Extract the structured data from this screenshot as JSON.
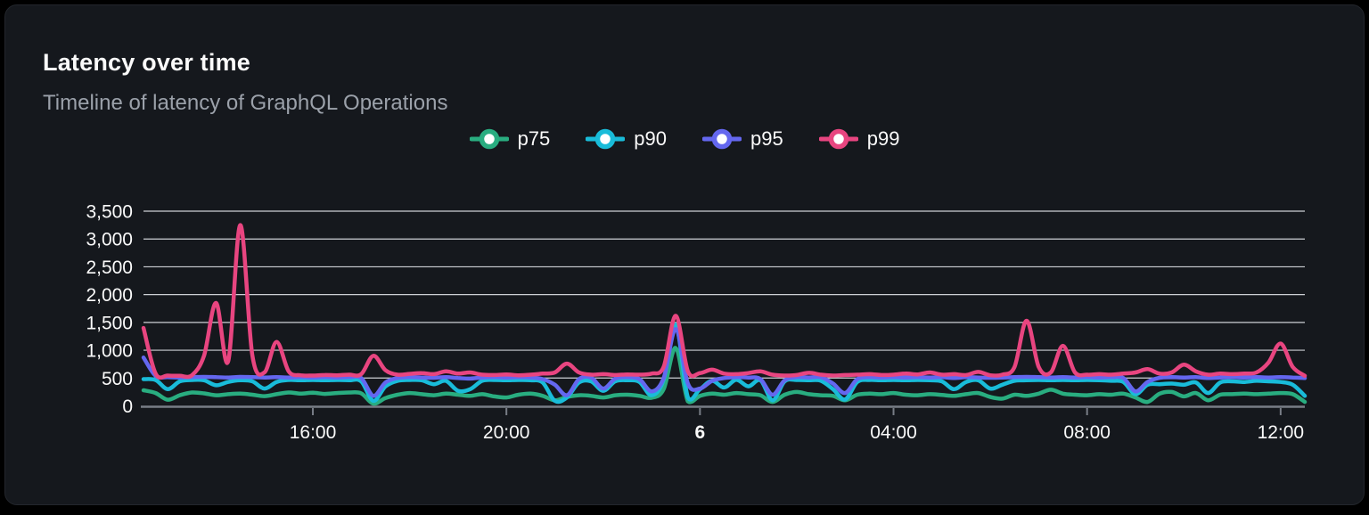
{
  "card": {
    "title": "Latency over time",
    "subtitle": "Timeline of latency of GraphQL Operations"
  },
  "colors": {
    "page_background": "#000000",
    "card_background": "#15181d",
    "title_text": "#fafafa",
    "subtitle_text": "#9ba1aa",
    "axis_label_text": "#fafafa",
    "gridline": "#e2e4e9",
    "axis_line": "#787d86"
  },
  "chart_data": {
    "type": "line",
    "title": "Latency over time",
    "subtitle": "Timeline of latency of GraphQL Operations",
    "ylabel": "",
    "xlabel": "",
    "ylim": [
      0,
      3500
    ],
    "grid": "horizontal",
    "legend_position": "top-center",
    "y_axis": {
      "ticks": [
        {
          "value": 0,
          "label": "0"
        },
        {
          "value": 500,
          "label": "500"
        },
        {
          "value": 1000,
          "label": "1,000"
        },
        {
          "value": 1500,
          "label": "1,500"
        },
        {
          "value": 2000,
          "label": "2,000"
        },
        {
          "value": 2500,
          "label": "2,500"
        },
        {
          "value": 3000,
          "label": "3,000"
        },
        {
          "value": 3500,
          "label": "3,500"
        }
      ]
    },
    "x_axis": {
      "note_points": 97,
      "ticks": [
        {
          "pos": 14,
          "label": "16:00",
          "bold": false
        },
        {
          "pos": 30,
          "label": "20:00",
          "bold": false
        },
        {
          "pos": 46,
          "label": "6",
          "bold": true
        },
        {
          "pos": 62,
          "label": "04:00",
          "bold": false
        },
        {
          "pos": 78,
          "label": "08:00",
          "bold": false
        },
        {
          "pos": 94,
          "label": "12:00",
          "bold": false
        }
      ]
    },
    "series": [
      {
        "name": "p75",
        "color": "#29ad80",
        "values": [
          280,
          230,
          110,
          190,
          240,
          225,
          190,
          210,
          220,
          200,
          175,
          210,
          240,
          220,
          235,
          215,
          230,
          240,
          225,
          40,
          140,
          200,
          230,
          210,
          190,
          220,
          200,
          180,
          210,
          170,
          150,
          200,
          220,
          180,
          100,
          160,
          190,
          180,
          150,
          190,
          200,
          180,
          145,
          300,
          1040,
          80,
          180,
          220,
          200,
          230,
          210,
          190,
          70,
          200,
          250,
          210,
          190,
          180,
          100,
          200,
          220,
          210,
          230,
          200,
          190,
          210,
          195,
          180,
          210,
          230,
          160,
          130,
          200,
          180,
          220,
          290,
          220,
          200,
          190,
          210,
          200,
          220,
          150,
          70,
          220,
          250,
          170,
          230,
          100,
          200,
          210,
          220,
          210,
          220,
          230,
          210,
          70
        ]
      },
      {
        "name": "p90",
        "color": "#19bcd9",
        "values": [
          480,
          465,
          300,
          440,
          465,
          460,
          370,
          430,
          460,
          440,
          310,
          430,
          465,
          460,
          465,
          460,
          465,
          460,
          440,
          90,
          350,
          450,
          465,
          460,
          390,
          450,
          270,
          300,
          450,
          465,
          460,
          465,
          460,
          420,
          90,
          150,
          420,
          440,
          270,
          440,
          460,
          430,
          190,
          470,
          1460,
          150,
          300,
          450,
          330,
          470,
          350,
          460,
          100,
          440,
          465,
          460,
          450,
          300,
          115,
          430,
          465,
          460,
          465,
          460,
          465,
          460,
          440,
          300,
          430,
          460,
          310,
          380,
          450,
          460,
          465,
          460,
          465,
          460,
          465,
          460,
          450,
          430,
          210,
          380,
          390,
          400,
          380,
          420,
          230,
          420,
          440,
          430,
          450,
          440,
          430,
          380,
          180
        ]
      },
      {
        "name": "p95",
        "color": "#6467ef",
        "values": [
          870,
          540,
          515,
          510,
          515,
          520,
          515,
          510,
          520,
          515,
          510,
          515,
          510,
          515,
          510,
          515,
          510,
          515,
          500,
          180,
          420,
          500,
          515,
          510,
          505,
          515,
          500,
          490,
          510,
          515,
          510,
          515,
          510,
          480,
          380,
          190,
          480,
          510,
          310,
          490,
          515,
          480,
          260,
          500,
          1380,
          400,
          310,
          450,
          500,
          515,
          510,
          480,
          200,
          460,
          515,
          510,
          515,
          400,
          230,
          480,
          515,
          510,
          515,
          510,
          515,
          510,
          515,
          500,
          515,
          510,
          505,
          510,
          515,
          520,
          515,
          510,
          515,
          510,
          515,
          510,
          515,
          500,
          260,
          430,
          505,
          515,
          510,
          515,
          500,
          510,
          515,
          510,
          515,
          510,
          515,
          510,
          500
        ]
      },
      {
        "name": "p99",
        "color": "#e84580",
        "values": [
          1400,
          580,
          545,
          540,
          550,
          900,
          1850,
          800,
          3250,
          900,
          600,
          1150,
          620,
          550,
          545,
          555,
          550,
          560,
          570,
          900,
          640,
          560,
          575,
          590,
          570,
          620,
          580,
          600,
          560,
          555,
          565,
          550,
          560,
          580,
          600,
          760,
          600,
          560,
          570,
          555,
          565,
          560,
          580,
          700,
          1620,
          620,
          590,
          650,
          580,
          570,
          590,
          620,
          560,
          545,
          555,
          595,
          560,
          545,
          555,
          560,
          570,
          555,
          560,
          580,
          565,
          600,
          560,
          570,
          555,
          610,
          550,
          560,
          700,
          1530,
          700,
          600,
          1080,
          600,
          560,
          570,
          560,
          580,
          600,
          660,
          580,
          600,
          740,
          620,
          560,
          580,
          570,
          580,
          600,
          780,
          1120,
          700,
          540
        ]
      }
    ]
  }
}
